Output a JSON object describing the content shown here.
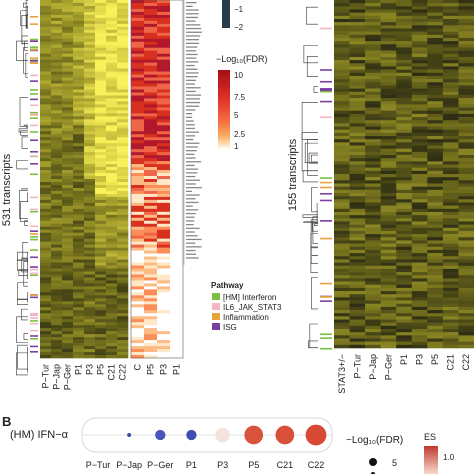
{
  "panel_a": {
    "left_ylabel": "531 transcripts",
    "right_ylabel": "155 transcripts",
    "left_heatmap_cols": [
      "P−Tur",
      "P−Jap",
      "P−Ger",
      "P1",
      "P3",
      "P5",
      "C21",
      "C22"
    ],
    "fdr_cols": [
      "C",
      "P5",
      "P3",
      "P1"
    ],
    "right_heatmap_cols": [
      "STAT3+/−",
      "P−Tur",
      "P−Jap",
      "P−Ger",
      "P1",
      "P3",
      "P5",
      "C21",
      "C22"
    ],
    "zscore_legend": {
      "ticks": [
        "−1",
        "−2"
      ]
    },
    "fdr_legend": {
      "title": "−Log₁₀(FDR)",
      "ticks": [
        "10",
        "7.5",
        "5",
        "2.5",
        "1"
      ],
      "colors": [
        "#b2182b",
        "#d7301f",
        "#ef6548",
        "#fc8d59",
        "#fdbb84",
        "#fee8c8"
      ]
    },
    "pathway_legend": {
      "title": "Pathway",
      "items": [
        {
          "label": "[HM] Interferon",
          "color": "#7ac143"
        },
        {
          "label": "IL6_JAK_STAT3",
          "color": "#f4b6c2"
        },
        {
          "label": "Inflammation",
          "color": "#e8a33d"
        },
        {
          "label": "ISG",
          "color": "#7b3fa0"
        }
      ]
    }
  },
  "panel_b": {
    "panel_letter": "B",
    "row_label": "(HM) IFN−α",
    "fdr_size_legend": {
      "title": "−Log₁₀(FDR)",
      "value": "5"
    },
    "es_legend": {
      "title": "ES",
      "tick": "1.0"
    }
  },
  "chart_data": {
    "type": "scatter",
    "title": "",
    "row": "(HM) IFN−α",
    "categories": [
      "P−Tur",
      "P−Jap",
      "P−Ger",
      "P1",
      "P3",
      "P5",
      "C21",
      "C22"
    ],
    "es": [
      0.0,
      -0.5,
      -0.6,
      -0.6,
      0.1,
      0.9,
      0.95,
      1.0
    ],
    "neg_log10_fdr": [
      0,
      1,
      3,
      3,
      5,
      7,
      7,
      8
    ],
    "colors": [
      "#ffffff",
      "#3b4bb0",
      "#4756b8",
      "#3e4cb2",
      "#f3e3dc",
      "#d9523c",
      "#d8503a",
      "#d64a35"
    ]
  }
}
